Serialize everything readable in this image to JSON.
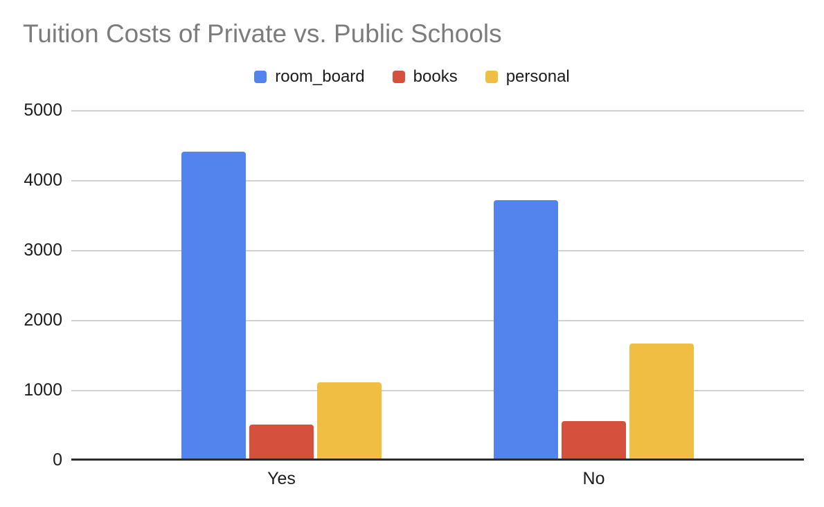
{
  "chart_data": {
    "type": "bar",
    "title": "Tuition Costs of Private vs. Public Schools",
    "categories": [
      "Yes",
      "No"
    ],
    "series": [
      {
        "name": "room_board",
        "color": "#5383EC",
        "values": [
          4390,
          3690
        ]
      },
      {
        "name": "books",
        "color": "#D5513E",
        "values": [
          490,
          530
        ]
      },
      {
        "name": "personal",
        "color": "#F0BE42",
        "values": [
          1085,
          1640
        ]
      }
    ],
    "ylim": [
      0,
      5000
    ],
    "yticks": [
      0,
      1000,
      2000,
      3000,
      4000,
      5000
    ],
    "xlabel": "",
    "ylabel": "",
    "grid": true,
    "legend_position": "top",
    "colors": {
      "title_text": "#7C7C7C",
      "axis_text": "#1B1B1B",
      "gridline": "#D0D0D0",
      "baseline": "#2B2B2B",
      "background": "#FFFFFF"
    }
  }
}
